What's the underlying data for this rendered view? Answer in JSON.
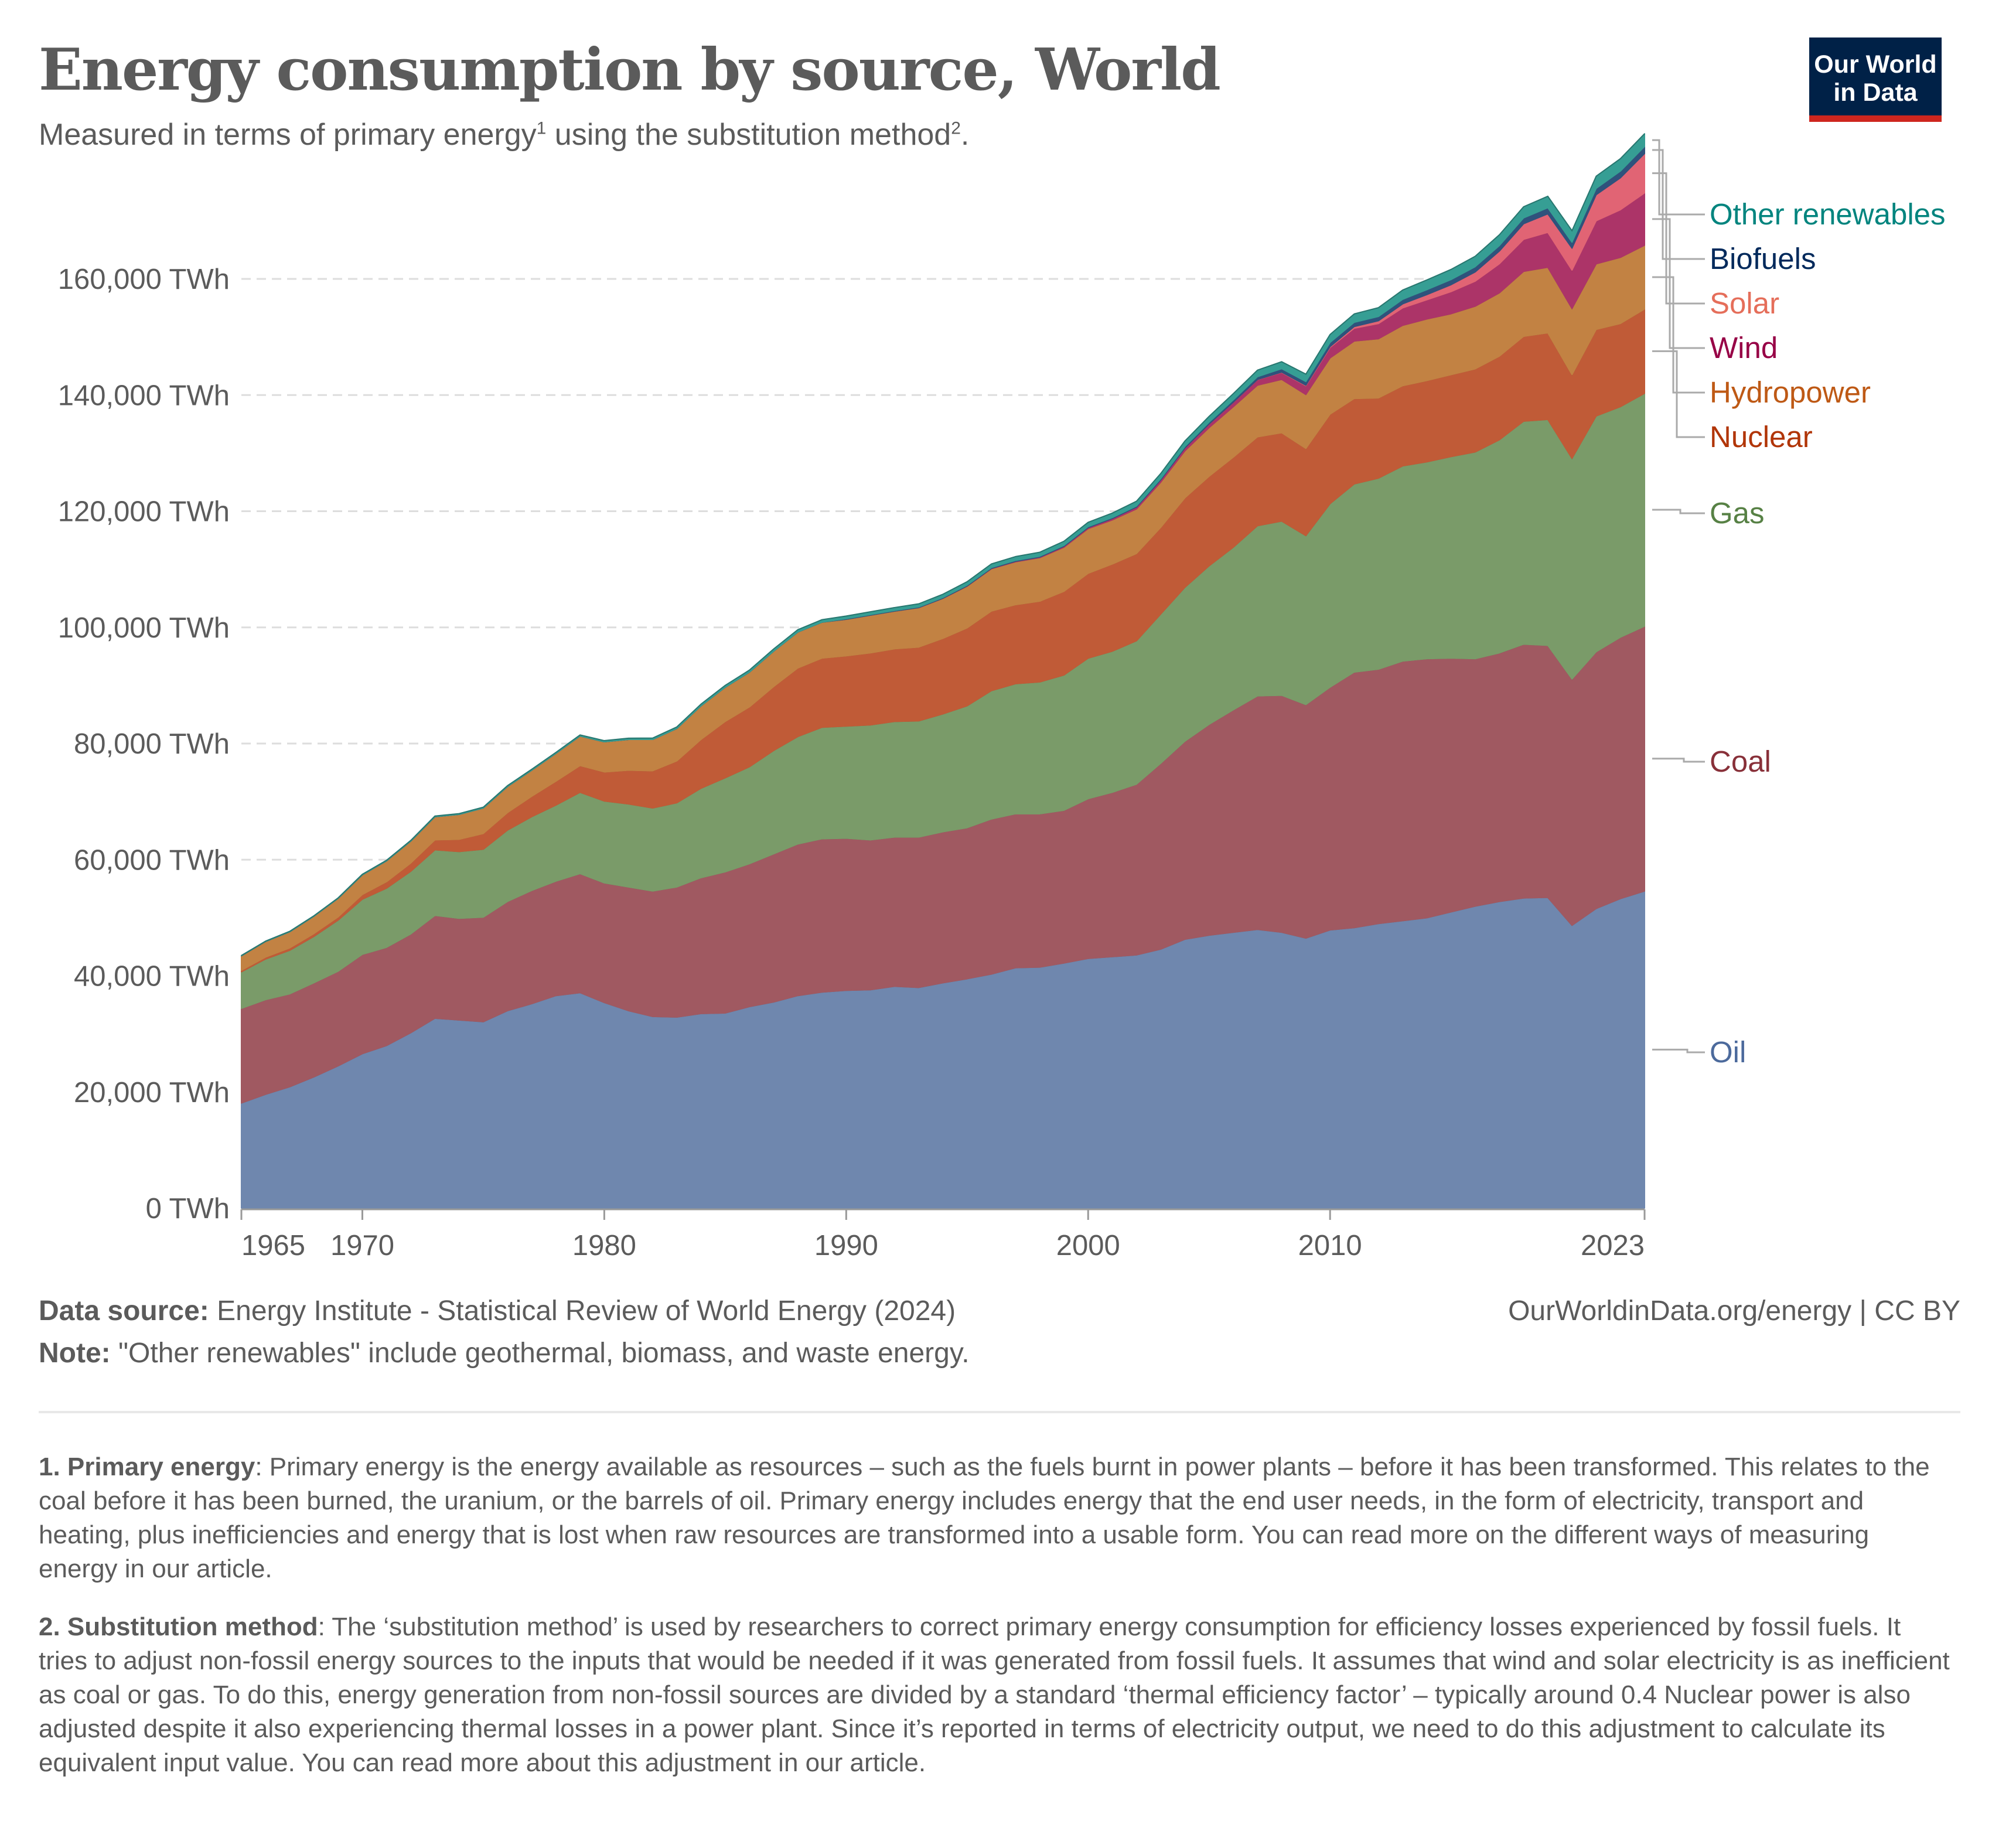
{
  "header": {
    "title": "Energy consumption by source, World",
    "subtitle_prefix": "Measured in terms of primary energy",
    "subtitle_sup1": "1",
    "subtitle_middle": " using the substitution method",
    "subtitle_sup2": "2",
    "subtitle_suffix": "."
  },
  "logo": {
    "line1": "Our World",
    "line2": "in Data",
    "bg_color": "#002147",
    "accent_color": "#ce261e"
  },
  "footer": {
    "source_label": "Data source:",
    "source_text": " Energy Institute - Statistical Review of World Energy (2024)",
    "note_label": "Note:",
    "note_text": " \"Other renewables\" include geothermal, biomass, and waste energy.",
    "url": "OurWorldinData.org/energy",
    "license": " | CC BY"
  },
  "footnotes": [
    {
      "label": "1. Primary energy",
      "text": ": Primary energy is the energy available as resources – such as the fuels burnt in power plants – before it has been transformed. This relates to the coal before it has been burned, the uranium, or the barrels of oil. Primary energy includes energy that the end user needs, in the form of electricity, transport and heating, plus inefficiencies and energy that is lost when raw resources are transformed into a usable form. You can read more on the different ways of measuring energy in our article."
    },
    {
      "label": "2. Substitution method",
      "text": ": The ‘substitution method’ is used by researchers to correct primary energy consumption for efficiency losses experienced by fossil fuels. It tries to adjust non-fossil energy sources to the inputs that would be needed if it was generated from fossil fuels. It assumes that wind and solar electricity is as inefficient as coal or gas. To do this, energy generation from non-fossil sources are divided by a standard ‘thermal efficiency factor’ – typically around 0.4 Nuclear power is also adjusted despite it also experiencing thermal losses in a power plant. Since it’s reported in terms of electricity output, we need to do this adjustment to calculate its equivalent input value. You can read more about this adjustment in our article."
    }
  ],
  "chart_data": {
    "type": "area",
    "stacked": true,
    "title": "Energy consumption by source, World",
    "subtitle": "Measured in terms of primary energy using the substitution method.",
    "xlabel": "",
    "ylabel": "",
    "unit": "TWh",
    "ylim": [
      0,
      172000
    ],
    "yticks": [
      0,
      20000,
      40000,
      60000,
      80000,
      100000,
      120000,
      140000,
      160000
    ],
    "ytick_labels": [
      "0 TWh",
      "20,000 TWh",
      "40,000 TWh",
      "60,000 TWh",
      "80,000 TWh",
      "100,000 TWh",
      "120,000 TWh",
      "140,000 TWh",
      "160,000 TWh"
    ],
    "xticks": [
      1965,
      1970,
      1980,
      1990,
      2000,
      2010,
      2023
    ],
    "xtick_labels": [
      "1965",
      "1970",
      "1980",
      "1990",
      "2000",
      "2010",
      "2023"
    ],
    "grid": "horizontal-dashed",
    "legend": "right (inline labels)",
    "x": [
      1965,
      1966,
      1967,
      1968,
      1969,
      1970,
      1971,
      1972,
      1973,
      1974,
      1975,
      1976,
      1977,
      1978,
      1979,
      1980,
      1981,
      1982,
      1983,
      1984,
      1985,
      1986,
      1987,
      1988,
      1989,
      1990,
      1991,
      1992,
      1993,
      1994,
      1995,
      1996,
      1997,
      1998,
      1999,
      2000,
      2001,
      2002,
      2003,
      2004,
      2005,
      2006,
      2007,
      2008,
      2009,
      2010,
      2011,
      2012,
      2013,
      2014,
      2015,
      2016,
      2017,
      2018,
      2019,
      2020,
      2021,
      2022,
      2023
    ],
    "series": [
      {
        "name": "Oil",
        "color": "#6f87ae",
        "label_color": "#4c6a9c",
        "values": [
          18100,
          19600,
          20900,
          22600,
          24500,
          26600,
          28000,
          30200,
          32700,
          32400,
          32100,
          34000,
          35200,
          36600,
          37100,
          35400,
          34000,
          33000,
          32900,
          33500,
          33600,
          34700,
          35500,
          36600,
          37200,
          37500,
          37600,
          38200,
          38000,
          38800,
          39500,
          40300,
          41400,
          41500,
          42200,
          43000,
          43300,
          43600,
          44600,
          46300,
          47000,
          47500,
          48000,
          47500,
          46500,
          47900,
          48300,
          49000,
          49500,
          50000,
          51000,
          52000,
          52800,
          53400,
          53500,
          48700,
          51600,
          53300,
          54600
        ]
      },
      {
        "name": "Coal",
        "color": "#a05961",
        "label_color": "#883039",
        "values": [
          16300,
          16300,
          16000,
          16200,
          16300,
          17100,
          16900,
          17000,
          17700,
          17500,
          18000,
          18800,
          19500,
          19700,
          20500,
          20600,
          21300,
          21600,
          22400,
          23400,
          24300,
          24600,
          25500,
          26100,
          26400,
          26200,
          25800,
          25700,
          25900,
          26000,
          26000,
          26700,
          26500,
          26400,
          26300,
          27500,
          28300,
          29400,
          32000,
          34100,
          36300,
          38300,
          40200,
          40800,
          40200,
          41800,
          44000,
          43800,
          44700,
          44600,
          43700,
          42600,
          42800,
          43700,
          43400,
          42400,
          44200,
          45000,
          45600
        ]
      },
      {
        "name": "Gas",
        "color": "#7a9b69",
        "label_color": "#578145",
        "values": [
          6300,
          7000,
          7500,
          8000,
          8800,
          9500,
          10200,
          10800,
          11300,
          11500,
          11700,
          12300,
          12700,
          13100,
          14000,
          14100,
          14300,
          14300,
          14500,
          15400,
          16200,
          16700,
          17800,
          18500,
          19200,
          19300,
          19800,
          19900,
          20000,
          20300,
          21000,
          22100,
          22400,
          22700,
          23300,
          24200,
          24300,
          24700,
          25700,
          26500,
          27300,
          28000,
          29300,
          30000,
          29100,
          31600,
          32400,
          32900,
          33600,
          33900,
          34700,
          35600,
          36700,
          38400,
          38900,
          38000,
          40600,
          39700,
          40100
        ]
      },
      {
        "name": "Nuclear",
        "color": "#c05b37",
        "label_color": "#b13507",
        "values": [
          250,
          320,
          400,
          480,
          550,
          800,
          1100,
          1400,
          1700,
          2100,
          2700,
          3000,
          3500,
          4100,
          4600,
          5000,
          5800,
          6400,
          7200,
          8400,
          9700,
          10300,
          11000,
          11800,
          11900,
          12100,
          12400,
          12500,
          12700,
          13000,
          13400,
          13700,
          13600,
          13900,
          14400,
          14600,
          15000,
          15000,
          14900,
          15400,
          15400,
          15500,
          15300,
          15200,
          15000,
          15400,
          14700,
          13800,
          13800,
          14000,
          14100,
          14300,
          14400,
          14600,
          14900,
          14400,
          14900,
          14300,
          14500
        ]
      },
      {
        "name": "Hydropower",
        "color": "#c28243",
        "label_color": "#be5915",
        "values": [
          2500,
          2700,
          2800,
          3000,
          3200,
          3400,
          3600,
          3800,
          4000,
          4300,
          4400,
          4500,
          4500,
          4800,
          5100,
          5200,
          5300,
          5400,
          5600,
          5800,
          5900,
          6000,
          6100,
          6200,
          6200,
          6300,
          6500,
          6500,
          6800,
          6900,
          7200,
          7300,
          7400,
          7500,
          7600,
          7700,
          7600,
          7700,
          7800,
          8100,
          8400,
          8700,
          8900,
          9200,
          9300,
          9700,
          9900,
          10200,
          10400,
          10600,
          10500,
          10800,
          10900,
          11200,
          11300,
          11400,
          11300,
          11400,
          11000
        ]
      },
      {
        "name": "Wind",
        "color": "#ac3468",
        "label_color": "#970046",
        "values": [
          0,
          0,
          0,
          0,
          0,
          0,
          0,
          0,
          0,
          0,
          0,
          0,
          0,
          0,
          0,
          0,
          0,
          0,
          0,
          0,
          0,
          0,
          0,
          0,
          0,
          0,
          10,
          10,
          20,
          30,
          50,
          60,
          80,
          110,
          160,
          200,
          250,
          320,
          400,
          500,
          620,
          770,
          960,
          1200,
          1500,
          1800,
          2200,
          2600,
          3000,
          3300,
          3800,
          4300,
          5000,
          5500,
          6000,
          6600,
          7400,
          8200,
          9000
        ]
      },
      {
        "name": "Solar",
        "color": "#e16474",
        "label_color": "#e56e5a",
        "values": [
          0,
          0,
          0,
          0,
          0,
          0,
          0,
          0,
          0,
          0,
          0,
          0,
          0,
          0,
          0,
          0,
          0,
          0,
          0,
          0,
          0,
          0,
          0,
          0,
          0,
          0,
          0,
          0,
          0,
          0,
          0,
          0,
          0,
          0,
          0,
          0,
          0,
          0,
          0,
          0,
          10,
          20,
          30,
          60,
          100,
          150,
          300,
          500,
          700,
          900,
          1200,
          1600,
          2200,
          2700,
          3200,
          3800,
          4500,
          5500,
          6800
        ]
      },
      {
        "name": "Biofuels",
        "color": "#2f527c",
        "label_color": "#00295b",
        "values": [
          0,
          0,
          0,
          0,
          0,
          0,
          0,
          0,
          0,
          0,
          0,
          0,
          0,
          0,
          0,
          0,
          0,
          0,
          0,
          0,
          0,
          0,
          0,
          0,
          0,
          100,
          100,
          100,
          110,
          120,
          130,
          140,
          150,
          150,
          150,
          150,
          160,
          180,
          210,
          250,
          300,
          380,
          470,
          580,
          620,
          700,
          720,
          730,
          780,
          840,
          880,
          900,
          940,
          1000,
          1050,
          1000,
          1080,
          1150,
          1200
        ]
      },
      {
        "name": "Other renewables",
        "color": "#369e94",
        "label_color": "#00847e",
        "values": [
          60,
          60,
          70,
          70,
          80,
          90,
          100,
          110,
          120,
          130,
          140,
          150,
          160,
          170,
          180,
          200,
          220,
          240,
          260,
          290,
          320,
          350,
          380,
          400,
          430,
          450,
          480,
          500,
          530,
          560,
          590,
          620,
          660,
          680,
          720,
          740,
          770,
          820,
          880,
          940,
          1000,
          1070,
          1130,
          1200,
          1280,
          1380,
          1450,
          1520,
          1600,
          1680,
          1750,
          1800,
          1860,
          1920,
          1980,
          2000,
          2100,
          2150,
          2200
        ]
      }
    ]
  }
}
